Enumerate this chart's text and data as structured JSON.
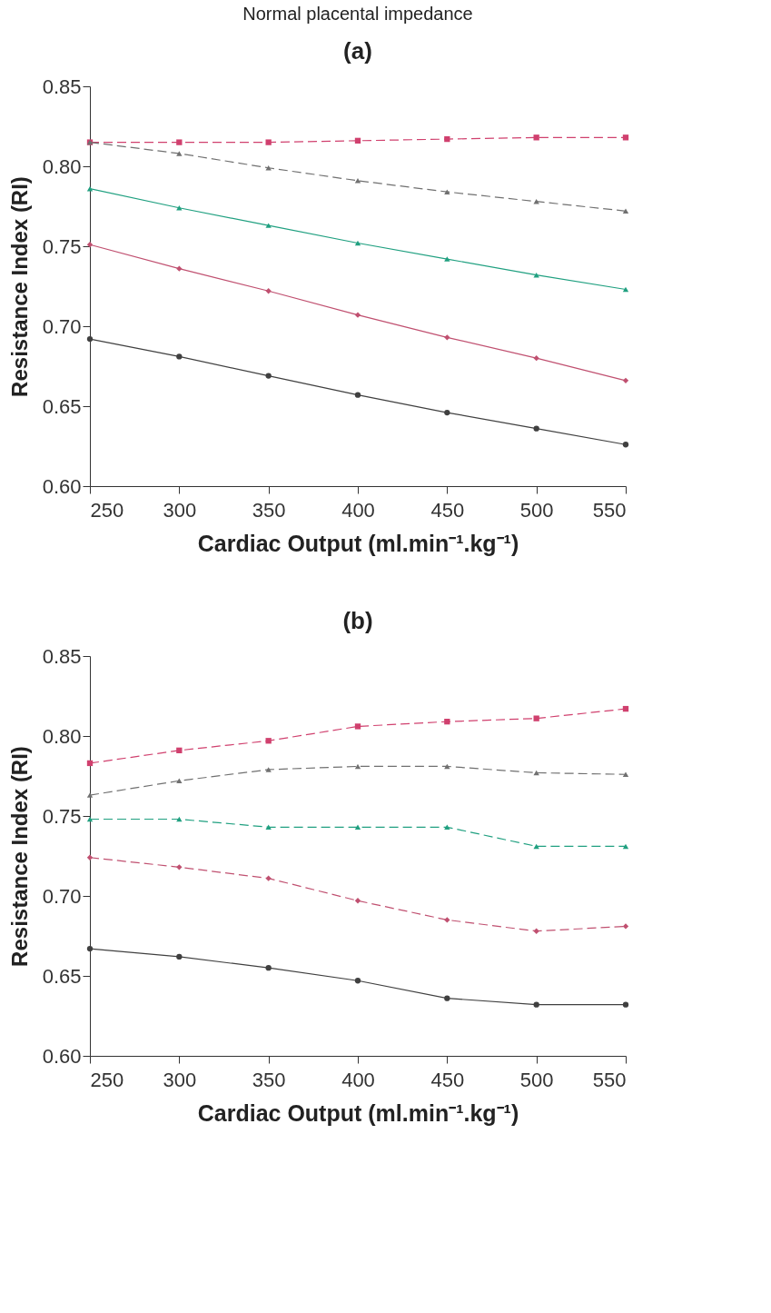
{
  "chart_data": [
    {
      "type": "line",
      "title": "Normal placental impedance",
      "subtitle": "(a)",
      "xlabel": "Cardiac Output (ml.min⁻¹.kg⁻¹)",
      "ylabel": "Resistance Index (RI)",
      "x": [
        250,
        300,
        350,
        400,
        450,
        500,
        550
      ],
      "xlim": [
        250,
        550
      ],
      "xticks": [
        250,
        300,
        350,
        400,
        450,
        500,
        550
      ],
      "ylim": [
        0.6,
        0.85
      ],
      "yticks": [
        {
          "value": 0.6,
          "label": "0.60"
        },
        {
          "value": 0.65,
          "label": "0.65"
        },
        {
          "value": 0.7,
          "label": "0.70"
        },
        {
          "value": 0.75,
          "label": "0.75"
        },
        {
          "value": 0.8,
          "label": "0.80"
        },
        {
          "value": 0.85,
          "label": "0.85"
        }
      ],
      "grid": false,
      "series": [
        {
          "color": "#d0406e",
          "marker": "square",
          "line_style": "dashed",
          "values": [
            0.815,
            0.815,
            0.815,
            0.816,
            0.817,
            0.818,
            0.818
          ]
        },
        {
          "color": "#707070",
          "marker": "triangle",
          "line_style": "dashed",
          "values": [
            0.815,
            0.808,
            0.799,
            0.791,
            0.784,
            0.778,
            0.772
          ]
        },
        {
          "color": "#20a080",
          "marker": "triangle",
          "line_style": "solid",
          "values": [
            0.786,
            0.774,
            0.763,
            0.752,
            0.742,
            0.732,
            0.723
          ]
        },
        {
          "color": "#c05070",
          "marker": "diamond",
          "line_style": "solid",
          "values": [
            0.751,
            0.736,
            0.722,
            0.707,
            0.693,
            0.68,
            0.666
          ]
        },
        {
          "color": "#404040",
          "marker": "circle",
          "line_style": "solid",
          "values": [
            0.692,
            0.681,
            0.669,
            0.657,
            0.646,
            0.636,
            0.626
          ]
        }
      ]
    },
    {
      "type": "line",
      "title": "(b)",
      "xlabel": "Cardiac Output (ml.min⁻¹.kg⁻¹)",
      "ylabel": "Resistance Index (RI)",
      "x": [
        250,
        300,
        350,
        400,
        450,
        500,
        550
      ],
      "xlim": [
        250,
        550
      ],
      "xticks": [
        250,
        300,
        350,
        400,
        450,
        500,
        550
      ],
      "ylim": [
        0.6,
        0.85
      ],
      "yticks": [
        {
          "value": 0.6,
          "label": "0.60"
        },
        {
          "value": 0.65,
          "label": "0.65"
        },
        {
          "value": 0.7,
          "label": "0.70"
        },
        {
          "value": 0.75,
          "label": "0.75"
        },
        {
          "value": 0.8,
          "label": "0.80"
        },
        {
          "value": 0.85,
          "label": "0.85"
        }
      ],
      "grid": false,
      "series": [
        {
          "color": "#d0406e",
          "marker": "square",
          "line_style": "dashed",
          "values": [
            0.783,
            0.791,
            0.797,
            0.806,
            0.809,
            0.811,
            0.817
          ]
        },
        {
          "color": "#707070",
          "marker": "triangle",
          "line_style": "dashed",
          "values": [
            0.763,
            0.772,
            0.779,
            0.781,
            0.781,
            0.777,
            0.776
          ]
        },
        {
          "color": "#20a080",
          "marker": "triangle",
          "line_style": "dashed",
          "values": [
            0.748,
            0.748,
            0.743,
            0.743,
            0.743,
            0.731,
            0.731
          ]
        },
        {
          "color": "#c05070",
          "marker": "diamond",
          "line_style": "dashed",
          "values": [
            0.724,
            0.718,
            0.711,
            0.697,
            0.685,
            0.678,
            0.681
          ]
        },
        {
          "color": "#404040",
          "marker": "circle",
          "line_style": "solid",
          "values": [
            0.667,
            0.662,
            0.655,
            0.647,
            0.636,
            0.632,
            0.632
          ]
        }
      ]
    }
  ]
}
